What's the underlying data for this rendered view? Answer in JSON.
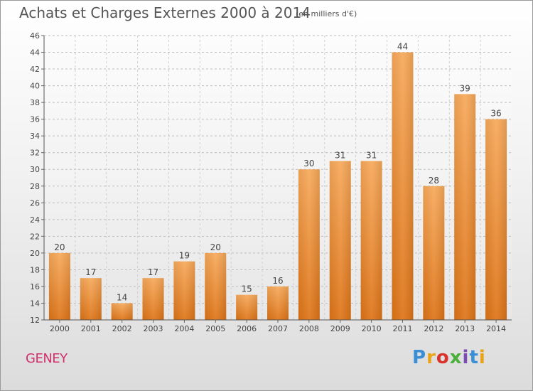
{
  "header": {
    "title": "Achats et Charges Externes 2000 à 2014",
    "unit": "(en milliers d'€)"
  },
  "footer": {
    "place": "GENEY",
    "logo": "Proxiti",
    "logo_colors": [
      "#3a8fd6",
      "#e8a317",
      "#d9332b",
      "#4caf3c",
      "#7b4bb5",
      "#3a8fd6",
      "#e8a317"
    ]
  },
  "chart_data": {
    "type": "bar",
    "categories": [
      "2000",
      "2001",
      "2002",
      "2003",
      "2004",
      "2005",
      "2006",
      "2007",
      "2008",
      "2009",
      "2010",
      "2011",
      "2012",
      "2013",
      "2014"
    ],
    "values": [
      20,
      17,
      14,
      17,
      19,
      20,
      15,
      16,
      30,
      31,
      31,
      44,
      28,
      39,
      36
    ],
    "ylim": [
      12,
      46
    ],
    "yticks": [
      12,
      14,
      16,
      18,
      20,
      22,
      24,
      26,
      28,
      30,
      32,
      34,
      36,
      38,
      40,
      42,
      44,
      46
    ],
    "grid": true,
    "bar_color": "#ee8a2e",
    "title": "Achats et Charges Externes 2000 à 2014"
  }
}
